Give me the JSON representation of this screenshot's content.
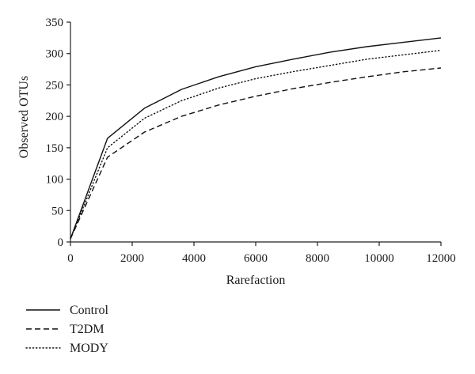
{
  "chart_data": {
    "type": "line",
    "title": "",
    "xlabel": "Rarefaction",
    "ylabel": "Observed OTUs",
    "xlim": [
      0,
      12000
    ],
    "ylim": [
      0,
      350
    ],
    "x_ticks": [
      0,
      2000,
      4000,
      6000,
      8000,
      10000,
      12000
    ],
    "y_ticks": [
      0,
      50,
      100,
      150,
      200,
      250,
      300,
      350
    ],
    "grid": false,
    "legend_position": "bottom-left",
    "series": [
      {
        "name": "Control",
        "style": "solid",
        "color": "#111111",
        "x": [
          0,
          1200,
          2400,
          3600,
          4800,
          6000,
          7200,
          8400,
          9600,
          10800,
          12000
        ],
        "y": [
          5,
          165,
          213,
          243,
          263,
          279,
          291,
          302,
          311,
          318,
          325
        ]
      },
      {
        "name": "T2DM",
        "style": "dashed",
        "color": "#111111",
        "x": [
          0,
          1200,
          2400,
          3600,
          4800,
          6000,
          7200,
          8400,
          9600,
          10800,
          12000
        ],
        "y": [
          5,
          135,
          175,
          200,
          218,
          232,
          244,
          254,
          263,
          271,
          277
        ]
      },
      {
        "name": "MODY",
        "style": "dotted",
        "color": "#111111",
        "x": [
          0,
          1200,
          2400,
          3600,
          4800,
          6000,
          7200,
          8400,
          9600,
          10800,
          12000
        ],
        "y": [
          5,
          150,
          197,
          225,
          245,
          260,
          271,
          281,
          291,
          298,
          305
        ]
      }
    ]
  }
}
